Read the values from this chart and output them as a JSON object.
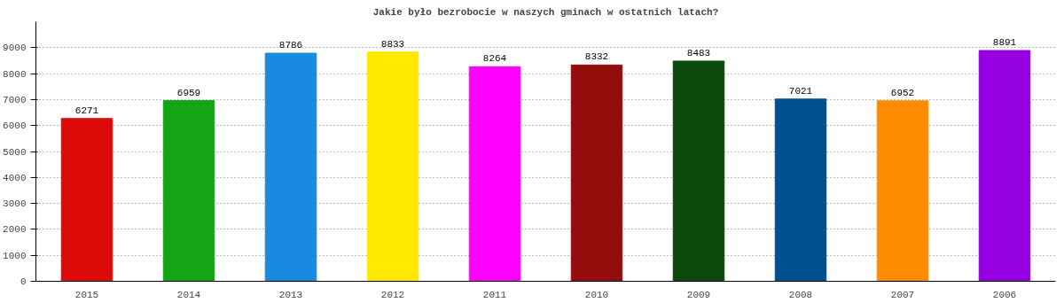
{
  "chart_data": {
    "type": "bar",
    "title": "Jakie było bezrobocie w naszych gminach w ostatnich latach?",
    "categories": [
      "2015",
      "2014",
      "2013",
      "2012",
      "2011",
      "2010",
      "2009",
      "2008",
      "2007",
      "2006"
    ],
    "values": [
      6271,
      6959,
      8786,
      8833,
      8264,
      8332,
      8483,
      7021,
      6952,
      8891
    ],
    "colors": [
      "#dd0a0a",
      "#14a514",
      "#1a8ae0",
      "#ffe800",
      "#ff00ff",
      "#940e0e",
      "#0a4a0a",
      "#005090",
      "#ff8c00",
      "#9400e0"
    ],
    "ylim": [
      0,
      10000
    ],
    "yticks": [
      0,
      1000,
      2000,
      3000,
      4000,
      5000,
      6000,
      7000,
      8000,
      9000
    ],
    "grid": "y",
    "data_labels": true
  }
}
